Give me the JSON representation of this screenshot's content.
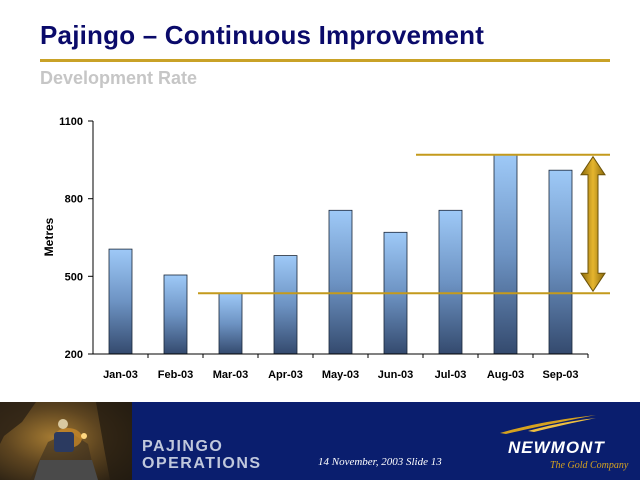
{
  "slide": {
    "title": "Pajingo – Continuous Improvement",
    "subtitle": "Development Rate"
  },
  "colors": {
    "title": "#0a0a6a",
    "accent_gold": "#c9a227",
    "subtitle": "#c6c6c6",
    "bar_top": "#9ec9f7",
    "bar_bottom": "#344a6e",
    "footer_bg": "#0a1e6e"
  },
  "chart_data": {
    "type": "bar",
    "categories": [
      "Jan-03",
      "Feb-03",
      "Mar-03",
      "Apr-03",
      "May-03",
      "Jun-03",
      "Jul-03",
      "Aug-03",
      "Sep-03"
    ],
    "values": [
      605,
      505,
      435,
      580,
      755,
      670,
      755,
      970,
      910
    ],
    "title": "",
    "xlabel": "",
    "ylabel": "Metres",
    "ylim": [
      200,
      1100
    ],
    "yticks": [
      200,
      500,
      800,
      1100
    ],
    "grid": false,
    "legend": "none",
    "annotations": {
      "upper_reference_line": 970,
      "lower_reference_line": 435,
      "double_arrow": {
        "from": 435,
        "to": 970
      }
    }
  },
  "footer": {
    "operations_line1": "PAJINGO",
    "operations_line2": "OPERATIONS",
    "slide_info": "14 November, 2003  Slide 13",
    "brand_name": "NEWMONT",
    "brand_tagline": "The Gold Company"
  }
}
